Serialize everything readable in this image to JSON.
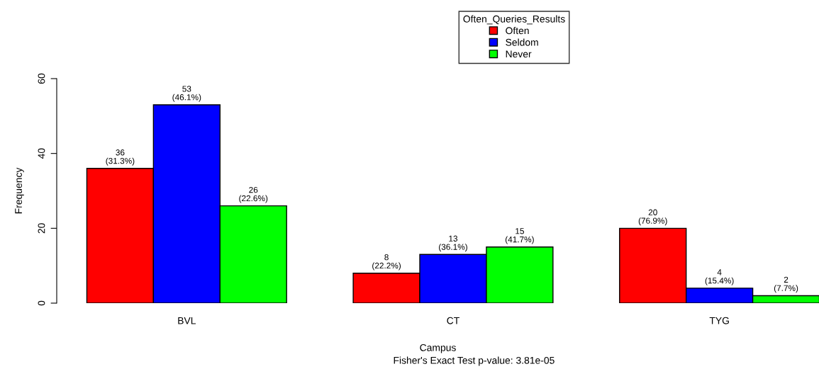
{
  "chart_data": {
    "type": "bar",
    "xlabel": "Campus",
    "ylabel": "Frequency",
    "categories": [
      "BVL",
      "CT",
      "TYG"
    ],
    "series": [
      {
        "name": "Often",
        "color": "#ff0000",
        "values": [
          36,
          8,
          20
        ],
        "value_labels": [
          "36\n(31.3%)",
          "8\n(22.2%)",
          "20\n(76.9%)"
        ]
      },
      {
        "name": "Seldom",
        "color": "#0000ff",
        "values": [
          53,
          13,
          4
        ],
        "value_labels": [
          "53\n(46.1%)",
          "13\n(36.1%)",
          "4\n(15.4%)"
        ]
      },
      {
        "name": "Never",
        "color": "#00ff00",
        "values": [
          26,
          15,
          2
        ],
        "value_labels": [
          "26\n(22.6%)",
          "15\n(41.7%)",
          "2\n(7.7%)"
        ]
      }
    ],
    "legend_title": "Often_Queries_Results",
    "legend": "top",
    "ylim": [
      0,
      60
    ],
    "yticks": [
      0,
      20,
      40,
      60
    ],
    "grid": false,
    "annotations": [
      "Fisher's Exact Test p-value: 3.81e-05"
    ]
  }
}
